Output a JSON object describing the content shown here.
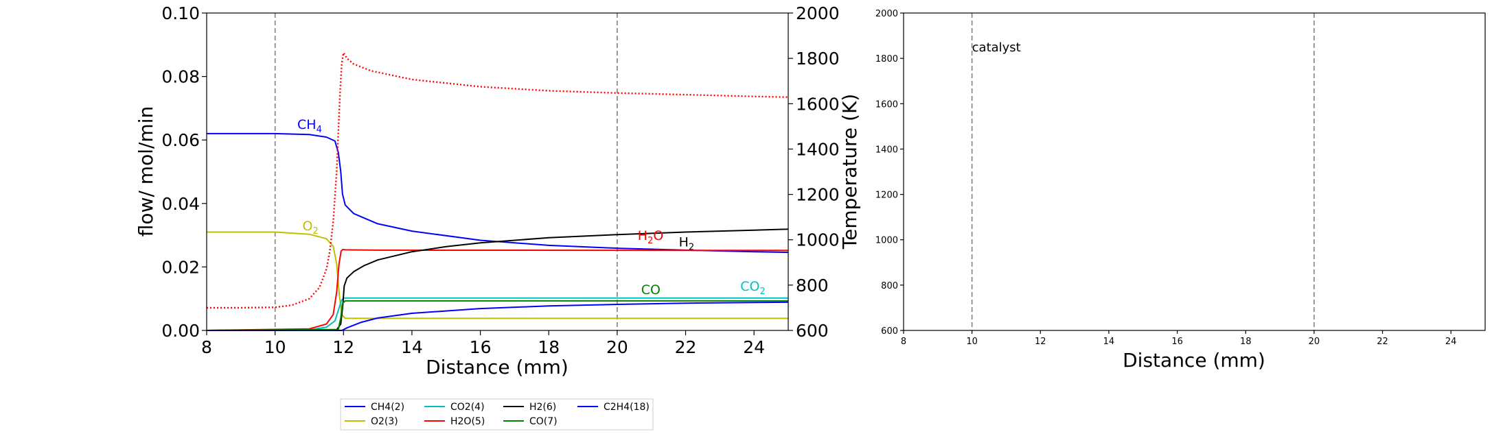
{
  "chart_data": [
    {
      "type": "line",
      "xlabel": "Distance (mm)",
      "ylabel": "flow/ mol/min",
      "y2label": "Temperature (K)",
      "xlim": [
        8,
        25
      ],
      "ylim": [
        0,
        0.1
      ],
      "y2lim": [
        600,
        2000
      ],
      "xticks": [
        "8",
        "10",
        "12",
        "14",
        "16",
        "18",
        "20",
        "22",
        "24"
      ],
      "yticks": [
        "0.00",
        "0.02",
        "0.04",
        "0.06",
        "0.08",
        "0.10"
      ],
      "y2ticks": [
        "600",
        "800",
        "1000",
        "1200",
        "1400",
        "1600",
        "1800",
        "2000"
      ],
      "vlines": [
        10,
        20
      ],
      "series": [
        {
          "name": "CH4(2)",
          "color": "#0000ff",
          "x": [
            8,
            10,
            11,
            11.5,
            11.75,
            11.85,
            11.92,
            11.97,
            12.05,
            12.3,
            13,
            14,
            16,
            18,
            20,
            22,
            24,
            25
          ],
          "values": [
            0.062,
            0.062,
            0.0617,
            0.0609,
            0.0597,
            0.056,
            0.05,
            0.043,
            0.0395,
            0.0368,
            0.0336,
            0.0313,
            0.0284,
            0.0268,
            0.0259,
            0.0253,
            0.0248,
            0.0246
          ]
        },
        {
          "name": "O2(3)",
          "color": "#bfbf00",
          "x": [
            8,
            10,
            11,
            11.5,
            11.7,
            11.8,
            11.88,
            11.95,
            12.05,
            12.5,
            25
          ],
          "values": [
            0.031,
            0.031,
            0.0303,
            0.0289,
            0.0265,
            0.021,
            0.011,
            0.005,
            0.0038,
            0.0038,
            0.0038
          ]
        },
        {
          "name": "CO2(4)",
          "color": "#00bfbf",
          "x": [
            8,
            11,
            11.5,
            11.75,
            11.87,
            11.94,
            12.0,
            12.3,
            25
          ],
          "values": [
            0,
            0.0002,
            0.001,
            0.003,
            0.007,
            0.0095,
            0.0102,
            0.0102,
            0.0102
          ]
        },
        {
          "name": "H2O(5)",
          "color": "#ff0000",
          "x": [
            8,
            11,
            11.5,
            11.7,
            11.8,
            11.87,
            11.93,
            11.98,
            12.05,
            13,
            25
          ],
          "values": [
            0,
            0.0005,
            0.002,
            0.005,
            0.012,
            0.021,
            0.025,
            0.0255,
            0.0254,
            0.0253,
            0.0252
          ]
        },
        {
          "name": "H2(6)",
          "color": "#000000",
          "x": [
            8,
            11.8,
            11.92,
            11.98,
            12.02,
            12.1,
            12.3,
            12.6,
            13,
            14,
            15,
            16,
            18,
            20,
            22,
            24,
            25
          ],
          "values": [
            0,
            0.0002,
            0.002,
            0.008,
            0.014,
            0.0165,
            0.0185,
            0.0204,
            0.0222,
            0.0248,
            0.0264,
            0.0276,
            0.0292,
            0.0302,
            0.031,
            0.0316,
            0.0319
          ]
        },
        {
          "name": "CO(7)",
          "color": "#008000",
          "x": [
            8,
            11.85,
            11.92,
            11.97,
            12.05,
            25
          ],
          "values": [
            0,
            0.0003,
            0.004,
            0.0085,
            0.0093,
            0.0093
          ]
        },
        {
          "name": "C2H4(18)",
          "color": "#0000ff",
          "x": [
            8,
            11.95,
            12.1,
            12.5,
            13,
            14,
            16,
            18,
            20,
            22,
            24,
            25
          ],
          "values": [
            0,
            0.0,
            0.0008,
            0.0025,
            0.0039,
            0.0054,
            0.0069,
            0.0077,
            0.0082,
            0.0086,
            0.0088,
            0.0089
          ]
        },
        {
          "name": "Temperature",
          "color": "#ff0000",
          "axis": "y2",
          "style": "dotted",
          "x": [
            8,
            9,
            10,
            10.5,
            11,
            11.3,
            11.5,
            11.6,
            11.7,
            11.8,
            11.85,
            11.9,
            11.95,
            12.0,
            12.1,
            12.3,
            12.8,
            14,
            16,
            18,
            20,
            22,
            24,
            25
          ],
          "values": [
            700,
            700,
            702,
            712,
            740,
            790,
            870,
            950,
            1080,
            1300,
            1480,
            1650,
            1780,
            1825,
            1800,
            1775,
            1745,
            1707,
            1675,
            1657,
            1647,
            1640,
            1632,
            1629
          ]
        }
      ],
      "species_labels": [
        {
          "text": "CH4",
          "sub": "4",
          "base": "CH",
          "color": "#0000ff",
          "x": 10.65,
          "y": 0.0635
        },
        {
          "text": "O2",
          "sub": "2",
          "base": "O",
          "color": "#bfbf00",
          "x": 10.8,
          "y": 0.0315
        },
        {
          "text": "H2O",
          "sub": "2",
          "base": "H",
          "after": "O",
          "color": "#ff0000",
          "x": 20.6,
          "y": 0.0285
        },
        {
          "text": "H2",
          "sub": "2",
          "base": "H",
          "color": "#000000",
          "x": 21.8,
          "y": 0.0265
        },
        {
          "text": "CO",
          "sub": "",
          "base": "CO",
          "color": "#008000",
          "x": 20.7,
          "y": 0.0115
        },
        {
          "text": "CO2",
          "sub": "2",
          "base": "CO",
          "color": "#00bfbf",
          "x": 23.6,
          "y": 0.0125
        }
      ],
      "legend": {
        "placement": "below",
        "entries": [
          {
            "label": "CH4(2)",
            "color": "#0000ff"
          },
          {
            "label": "O2(3)",
            "color": "#bfbf00"
          },
          {
            "label": "CO2(4)",
            "color": "#00bfbf"
          },
          {
            "label": "H2O(5)",
            "color": "#ff0000"
          },
          {
            "label": "H2(6)",
            "color": "#000000"
          },
          {
            "label": "CO(7)",
            "color": "#008000"
          },
          {
            "label": "C2H4(18)",
            "color": "#0000ff"
          }
        ]
      }
    },
    {
      "type": "line",
      "xlabel": "Distance (mm)",
      "xlim": [
        8,
        25
      ],
      "ylim": [
        600,
        2000
      ],
      "xticks": [
        "8",
        "10",
        "12",
        "14",
        "16",
        "18",
        "20",
        "22",
        "24"
      ],
      "yticks": [
        "600",
        "800",
        "1000",
        "1200",
        "1400",
        "1600",
        "1800",
        "2000"
      ],
      "vlines": [
        10,
        20
      ],
      "annotation": {
        "text": "catalyst",
        "x": 10.0,
        "y": 1830
      },
      "series": []
    }
  ]
}
